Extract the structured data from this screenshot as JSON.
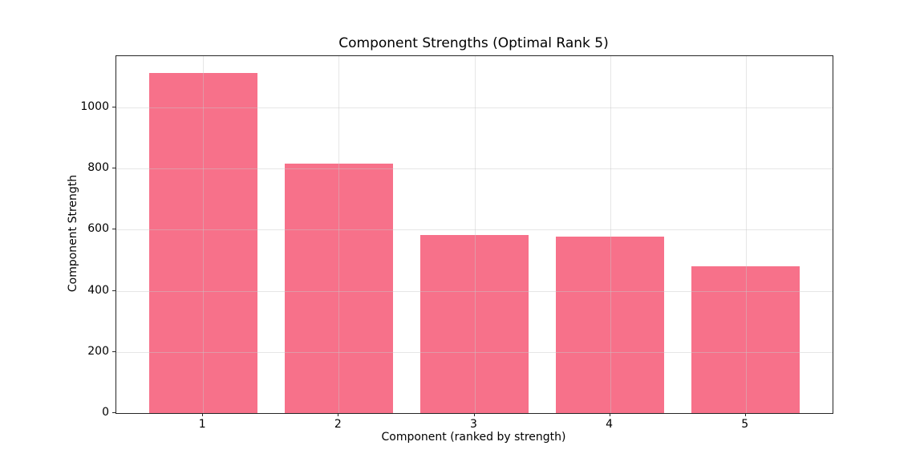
{
  "chart_data": {
    "type": "bar",
    "title": "Component Strengths (Optimal Rank 5)",
    "xlabel": "Component (ranked by strength)",
    "ylabel": "Component Strength",
    "categories": [
      "1",
      "2",
      "3",
      "4",
      "5"
    ],
    "values": [
      1113,
      817,
      583,
      578,
      480
    ],
    "bar_color": "#f7718a",
    "bar_width": 0.8,
    "xlim": [
      0.36,
      5.64
    ],
    "ylim": [
      0,
      1168
    ],
    "yticks": [
      0,
      200,
      400,
      600,
      800,
      1000
    ],
    "grid": true,
    "grid_color": "#cccccc",
    "spine_color": "#262626",
    "legend": "none",
    "background_color": "#ffffff"
  }
}
